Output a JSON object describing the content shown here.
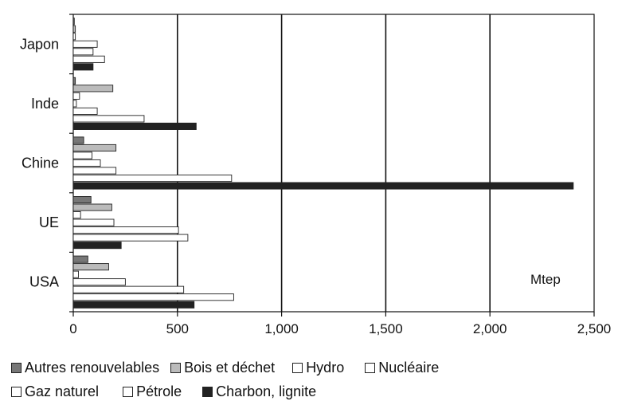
{
  "chart_data": {
    "type": "bar",
    "orientation": "horizontal",
    "categories": [
      "Japon",
      "Inde",
      "Chine",
      "UE",
      "USA"
    ],
    "series": [
      {
        "name": "Autres renouvelables",
        "color": "#777777",
        "values": [
          5,
          10,
          50,
          85,
          70
        ]
      },
      {
        "name": "Bois et déchet",
        "color": "#bbbbbb",
        "values": [
          10,
          190,
          205,
          185,
          170
        ]
      },
      {
        "name": "Hydro",
        "color": "#ffffff",
        "values": [
          10,
          30,
          90,
          35,
          25
        ]
      },
      {
        "name": "Nucléaire",
        "color": "#ffffff",
        "values": [
          115,
          15,
          130,
          195,
          250
        ]
      },
      {
        "name": "Gaz naturel",
        "color": "#ffffff",
        "values": [
          95,
          115,
          205,
          505,
          530
        ]
      },
      {
        "name": "Pétrole",
        "color": "#ffffff",
        "values": [
          150,
          340,
          760,
          550,
          770
        ]
      },
      {
        "name": "Charbon, lignite",
        "color": "#222222",
        "values": [
          95,
          590,
          2400,
          230,
          580
        ]
      }
    ],
    "xlim": [
      0,
      2500
    ],
    "xticks": [
      "0",
      "500",
      "1,000",
      "1,500",
      "2,000",
      "2,500"
    ],
    "unit_label": "Mtep",
    "grid": "vertical major gridlines",
    "legend_position": "bottom"
  },
  "legend": {
    "row1": [
      "Autres renouvelables",
      "Bois et déchet",
      "Hydro",
      "Nucléaire"
    ],
    "row2": [
      "Gaz naturel",
      "Pétrole",
      "Charbon, lignite"
    ]
  }
}
